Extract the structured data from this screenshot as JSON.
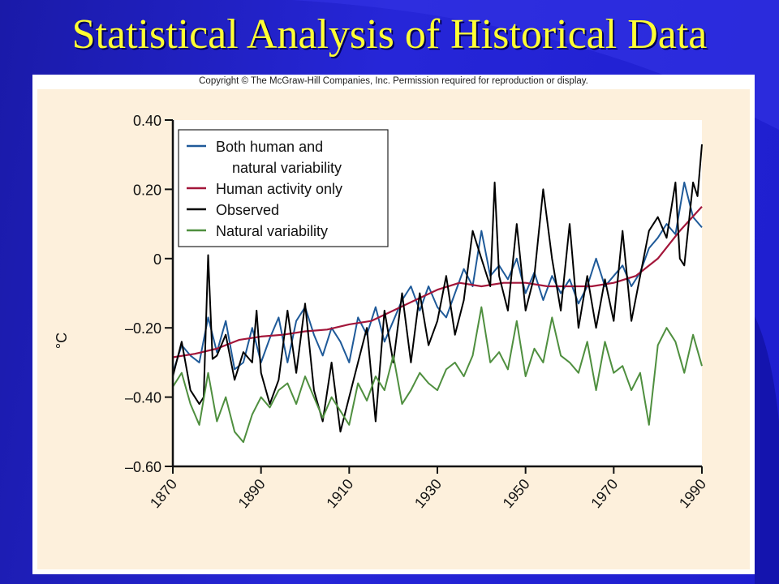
{
  "slide": {
    "title": "Statistical Analysis of Historical Data",
    "copyright": "Copyright © The McGraw-Hill Companies, Inc. Permission required for reproduction or display."
  },
  "colors": {
    "both": "#1f5a99",
    "human": "#a3163a",
    "observed": "#000000",
    "natural": "#4f8f3f",
    "title": "#ffff33"
  },
  "chart_data": {
    "type": "line",
    "ylabel": "°C",
    "xlabel": "",
    "ylim": [
      -0.6,
      0.4
    ],
    "xlim": [
      1870,
      1990
    ],
    "yticks": [
      0.4,
      0.2,
      0,
      -0.2,
      -0.4,
      -0.6
    ],
    "ytick_labels": [
      "0.40",
      "0.20",
      "0",
      "–0.20",
      "–0.40",
      "–0.60"
    ],
    "xticks": [
      1870,
      1890,
      1910,
      1930,
      1950,
      1970,
      1990
    ],
    "legend_position": "top-left",
    "grid": false,
    "series": [
      {
        "name": "Both human and natural variability",
        "key": "both",
        "x": [
          1870,
          1872,
          1874,
          1876,
          1878,
          1880,
          1882,
          1884,
          1886,
          1888,
          1890,
          1892,
          1894,
          1896,
          1898,
          1900,
          1902,
          1904,
          1906,
          1908,
          1910,
          1912,
          1914,
          1916,
          1918,
          1920,
          1922,
          1924,
          1926,
          1928,
          1930,
          1932,
          1934,
          1936,
          1938,
          1940,
          1942,
          1944,
          1946,
          1948,
          1950,
          1952,
          1954,
          1956,
          1958,
          1960,
          1962,
          1964,
          1966,
          1968,
          1970,
          1972,
          1974,
          1976,
          1978,
          1980,
          1982,
          1984,
          1986,
          1988,
          1990
        ],
        "values": [
          -0.33,
          -0.25,
          -0.28,
          -0.3,
          -0.17,
          -0.27,
          -0.18,
          -0.32,
          -0.3,
          -0.2,
          -0.3,
          -0.23,
          -0.17,
          -0.3,
          -0.18,
          -0.14,
          -0.22,
          -0.28,
          -0.2,
          -0.24,
          -0.3,
          -0.17,
          -0.22,
          -0.14,
          -0.24,
          -0.18,
          -0.12,
          -0.08,
          -0.15,
          -0.08,
          -0.14,
          -0.17,
          -0.1,
          -0.03,
          -0.08,
          0.08,
          -0.05,
          -0.02,
          -0.06,
          0.0,
          -0.1,
          -0.04,
          -0.12,
          -0.05,
          -0.1,
          -0.06,
          -0.13,
          -0.08,
          0.0,
          -0.08,
          -0.05,
          -0.02,
          -0.08,
          -0.04,
          0.03,
          0.06,
          0.1,
          0.07,
          0.22,
          0.12,
          0.09
        ]
      },
      {
        "name": "Human activity only",
        "key": "human",
        "x": [
          1870,
          1875,
          1880,
          1885,
          1890,
          1895,
          1900,
          1905,
          1910,
          1915,
          1920,
          1925,
          1930,
          1935,
          1940,
          1945,
          1950,
          1955,
          1960,
          1965,
          1970,
          1975,
          1980,
          1985,
          1990
        ],
        "values": [
          -0.285,
          -0.275,
          -0.26,
          -0.235,
          -0.225,
          -0.22,
          -0.21,
          -0.205,
          -0.19,
          -0.18,
          -0.15,
          -0.12,
          -0.09,
          -0.07,
          -0.08,
          -0.07,
          -0.07,
          -0.08,
          -0.08,
          -0.08,
          -0.07,
          -0.05,
          0.0,
          0.08,
          0.15
        ]
      },
      {
        "name": "Observed",
        "key": "observed",
        "x": [
          1870,
          1872,
          1874,
          1876,
          1877,
          1878,
          1879,
          1880,
          1882,
          1884,
          1886,
          1888,
          1889,
          1890,
          1892,
          1894,
          1896,
          1898,
          1900,
          1902,
          1904,
          1906,
          1908,
          1910,
          1912,
          1914,
          1916,
          1918,
          1920,
          1922,
          1924,
          1926,
          1928,
          1930,
          1932,
          1934,
          1936,
          1938,
          1940,
          1942,
          1943,
          1944,
          1946,
          1948,
          1950,
          1952,
          1954,
          1956,
          1958,
          1960,
          1962,
          1964,
          1966,
          1968,
          1970,
          1972,
          1974,
          1976,
          1978,
          1980,
          1982,
          1984,
          1985,
          1986,
          1988,
          1989,
          1990
        ],
        "values": [
          -0.34,
          -0.24,
          -0.38,
          -0.42,
          -0.4,
          0.01,
          -0.29,
          -0.28,
          -0.22,
          -0.35,
          -0.27,
          -0.3,
          -0.15,
          -0.33,
          -0.42,
          -0.35,
          -0.15,
          -0.33,
          -0.13,
          -0.38,
          -0.47,
          -0.3,
          -0.5,
          -0.4,
          -0.3,
          -0.2,
          -0.47,
          -0.15,
          -0.3,
          -0.1,
          -0.3,
          -0.1,
          -0.25,
          -0.18,
          -0.05,
          -0.22,
          -0.12,
          0.08,
          0.0,
          -0.08,
          0.22,
          -0.05,
          -0.15,
          0.1,
          -0.15,
          -0.05,
          0.2,
          0.0,
          -0.15,
          0.1,
          -0.2,
          -0.05,
          -0.2,
          -0.06,
          -0.18,
          0.08,
          -0.18,
          -0.05,
          0.08,
          0.12,
          0.06,
          0.22,
          0.0,
          -0.02,
          0.22,
          0.18,
          0.33
        ]
      },
      {
        "name": "Natural variability",
        "key": "natural",
        "x": [
          1870,
          1872,
          1874,
          1876,
          1878,
          1880,
          1882,
          1884,
          1886,
          1888,
          1890,
          1892,
          1894,
          1896,
          1898,
          1900,
          1902,
          1904,
          1906,
          1908,
          1910,
          1912,
          1914,
          1916,
          1918,
          1920,
          1922,
          1924,
          1926,
          1928,
          1930,
          1932,
          1934,
          1936,
          1938,
          1940,
          1942,
          1944,
          1946,
          1948,
          1950,
          1952,
          1954,
          1956,
          1958,
          1960,
          1962,
          1964,
          1966,
          1968,
          1970,
          1972,
          1974,
          1976,
          1978,
          1980,
          1982,
          1984,
          1986,
          1988,
          1990
        ],
        "values": [
          -0.37,
          -0.33,
          -0.42,
          -0.48,
          -0.33,
          -0.47,
          -0.4,
          -0.5,
          -0.53,
          -0.45,
          -0.4,
          -0.43,
          -0.38,
          -0.36,
          -0.42,
          -0.34,
          -0.4,
          -0.46,
          -0.4,
          -0.44,
          -0.48,
          -0.36,
          -0.41,
          -0.34,
          -0.38,
          -0.28,
          -0.42,
          -0.38,
          -0.33,
          -0.36,
          -0.38,
          -0.32,
          -0.3,
          -0.34,
          -0.28,
          -0.14,
          -0.3,
          -0.27,
          -0.32,
          -0.18,
          -0.34,
          -0.26,
          -0.3,
          -0.17,
          -0.28,
          -0.3,
          -0.33,
          -0.24,
          -0.38,
          -0.24,
          -0.33,
          -0.31,
          -0.38,
          -0.33,
          -0.48,
          -0.25,
          -0.2,
          -0.24,
          -0.33,
          -0.22,
          -0.31
        ]
      }
    ],
    "legend": [
      {
        "key": "both",
        "label_lines": [
          "Both human and",
          "natural variability"
        ]
      },
      {
        "key": "human",
        "label_lines": [
          "Human activity only"
        ]
      },
      {
        "key": "observed",
        "label_lines": [
          "Observed"
        ]
      },
      {
        "key": "natural",
        "label_lines": [
          "Natural variability"
        ]
      }
    ]
  }
}
